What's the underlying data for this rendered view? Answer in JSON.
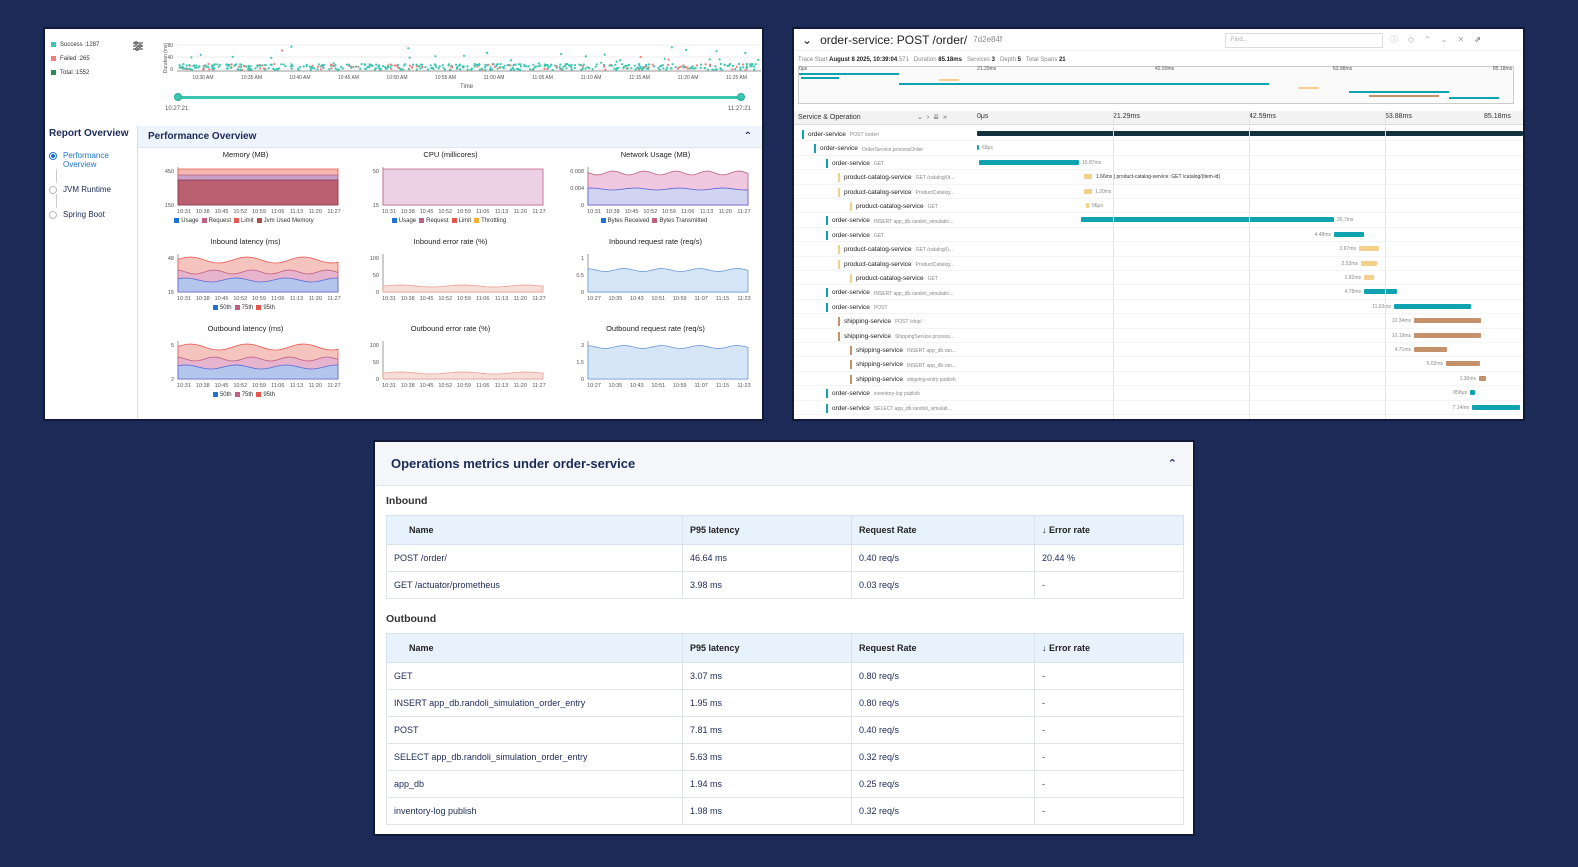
{
  "dashboard": {
    "legend": [
      {
        "label": "Success :1287",
        "color": "#3cc7b1"
      },
      {
        "label": "Failed :265",
        "color": "#f47c7c"
      },
      {
        "label": "Total :1552",
        "color": "#2e8b57"
      }
    ],
    "y_axis_label": "Duration (ms)",
    "y_ticks": [
      "80",
      "40",
      "0"
    ],
    "x_ticks": [
      "10:30 AM",
      "10:35 AM",
      "10:40 AM",
      "10:45 AM",
      "10:50 AM",
      "10:55 AM",
      "11:00 AM",
      "11:05 AM",
      "11:10 AM",
      "11:15 AM",
      "11:20 AM",
      "11:25 AM"
    ],
    "x_axis_label": "Time",
    "range_start": "10:27:21",
    "range_end": "11:27:21",
    "report_overview": {
      "title": "Report Overview",
      "items": [
        "Performance Overview",
        "JVM Runtime",
        "Spring Boot"
      ]
    },
    "perf_title": "Performance Overview",
    "charts": [
      {
        "title": "Memory (MB)",
        "y_ticks": [
          "450",
          "150"
        ],
        "x_ticks": [
          "10:31",
          "10:38",
          "10:45",
          "10:52",
          "10:59",
          "11:06",
          "11:13",
          "11:20",
          "11:27"
        ],
        "legend": [
          {
            "label": "Usage",
            "color": "#1f73d1"
          },
          {
            "label": "Request",
            "color": "#c06080"
          },
          {
            "label": "Limit",
            "color": "#e8574f"
          },
          {
            "label": "Jvm Used Memory",
            "color": "#b05050"
          }
        ],
        "kind": "memory"
      },
      {
        "title": "CPU (millicores)",
        "y_ticks": [
          "50",
          "15"
        ],
        "x_ticks": [
          "10:31",
          "10:38",
          "10:45",
          "10:52",
          "10:59",
          "11:06",
          "11:13",
          "11:20",
          "11:27"
        ],
        "legend": [
          {
            "label": "Usage",
            "color": "#1f73d1"
          },
          {
            "label": "Request",
            "color": "#c06080"
          },
          {
            "label": "Limit",
            "color": "#e8574f"
          },
          {
            "label": "Throttling",
            "color": "#f0b030"
          }
        ],
        "kind": "cpu"
      },
      {
        "title": "Network Usage (MB)",
        "y_ticks": [
          "0.008",
          "0.004",
          "0"
        ],
        "x_ticks": [
          "10:31",
          "10:38",
          "10:45",
          "10:52",
          "10:59",
          "11:06",
          "11:13",
          "11:20",
          "11:27"
        ],
        "legend": [
          {
            "label": "Bytes Received",
            "color": "#1f73d1"
          },
          {
            "label": "Bytes Transmitted",
            "color": "#c06080"
          }
        ],
        "kind": "network"
      },
      {
        "title": "Inbound latency (ms)",
        "y_ticks": [
          "48",
          "15"
        ],
        "x_ticks": [
          "10:31",
          "10:38",
          "10:45",
          "10:52",
          "10:59",
          "11:06",
          "11:13",
          "11:20",
          "11:27"
        ],
        "legend": [
          {
            "label": "50th",
            "color": "#1f73d1"
          },
          {
            "label": "75th",
            "color": "#c06080"
          },
          {
            "label": "95th",
            "color": "#e8574f"
          }
        ],
        "kind": "latency"
      },
      {
        "title": "Inbound error rate (%)",
        "y_ticks": [
          "100",
          "50",
          "0"
        ],
        "x_ticks": [
          "10:31",
          "10:38",
          "10:45",
          "10:52",
          "10:59",
          "11:06",
          "11:13",
          "11:20",
          "11:27"
        ],
        "legend": [],
        "kind": "error"
      },
      {
        "title": "Inbound request rate (req/s)",
        "y_ticks": [
          "1",
          "0.5",
          "0"
        ],
        "x_ticks": [
          "10:27",
          "10:35",
          "10:43",
          "10:51",
          "10:59",
          "11:07",
          "11:15",
          "11:23"
        ],
        "legend": [],
        "kind": "rate"
      },
      {
        "title": "Outbound latency (ms)",
        "y_ticks": [
          "5",
          "2"
        ],
        "x_ticks": [
          "10:31",
          "10:38",
          "10:45",
          "10:52",
          "10:59",
          "11:06",
          "11:13",
          "11:20",
          "11:27"
        ],
        "legend": [
          {
            "label": "50th",
            "color": "#1f73d1"
          },
          {
            "label": "75th",
            "color": "#c06080"
          },
          {
            "label": "95th",
            "color": "#e8574f"
          }
        ],
        "kind": "latency2"
      },
      {
        "title": "Outbound error rate (%)",
        "y_ticks": [
          "100",
          "50",
          "0"
        ],
        "x_ticks": [
          "10:31",
          "10:38",
          "10:45",
          "10:52",
          "10:59",
          "11:06",
          "11:13",
          "11:20",
          "11:27"
        ],
        "legend": [],
        "kind": "error"
      },
      {
        "title": "Outbound request rate (req/s)",
        "y_ticks": [
          "3",
          "1.5",
          "0"
        ],
        "x_ticks": [
          "10:27",
          "10:35",
          "10:43",
          "10:51",
          "10:59",
          "11:07",
          "11:15",
          "11:23"
        ],
        "legend": [],
        "kind": "rate2"
      }
    ]
  },
  "trace": {
    "title": "order-service: POST /order/",
    "trace_id": "7d2e84f",
    "find_placeholder": "Find...",
    "meta": {
      "start_label": "Trace Start",
      "start": "August 8 2025, 10:39:04",
      "start_ms": ".571",
      "duration_label": "Duration",
      "duration": "85.18ms",
      "services_label": "Services",
      "services": "3",
      "depth_label": "Depth",
      "depth": "5",
      "spans_label": "Total Spans",
      "spans": "21"
    },
    "ticks": [
      "0μs",
      "21.29ms",
      "42.59ms",
      "63.88ms",
      "85.18ms"
    ],
    "column_header": "Service & Operation",
    "inline_label": "1.66ms | product-catalog-service: GET /catalog/{item-id}",
    "spans": [
      {
        "service": "order-service",
        "op": "POST /order/",
        "depth": 0,
        "color": "#0fa3b1",
        "dur": ""
      },
      {
        "service": "order-service",
        "op": "OrderService.processOrder",
        "depth": 1,
        "color": "#0fa3b1",
        "dur": "69μs"
      },
      {
        "service": "order-service",
        "op": "GET",
        "depth": 2,
        "color": "#0fa3b1",
        "dur": "15.87ms"
      },
      {
        "service": "product-catalog-service",
        "op": "GET /catalog/{it...",
        "depth": 3,
        "color": "#f5d08c",
        "dur": ""
      },
      {
        "service": "product-catalog-service",
        "op": "ProductCatalog...",
        "depth": 3,
        "color": "#f5d08c",
        "dur": "1.20ms"
      },
      {
        "service": "product-catalog-service",
        "op": "GET",
        "depth": 4,
        "color": "#f5d08c",
        "dur": "96μs"
      },
      {
        "service": "order-service",
        "op": "INSERT app_db.randoli_simulatio...",
        "depth": 2,
        "color": "#0fa3b1",
        "dur": "39.7ms"
      },
      {
        "service": "order-service",
        "op": "GET",
        "depth": 2,
        "color": "#0fa3b1",
        "dur": "4.48ms"
      },
      {
        "service": "product-catalog-service",
        "op": "GET /catalog/{i...",
        "depth": 3,
        "color": "#f5d08c",
        "dur": "2.67ms"
      },
      {
        "service": "product-catalog-service",
        "op": "ProductCatalog...",
        "depth": 3,
        "color": "#f5d08c",
        "dur": "2.53ms"
      },
      {
        "service": "product-catalog-service",
        "op": "GET",
        "depth": 4,
        "color": "#f5d08c",
        "dur": "1.82ms"
      },
      {
        "service": "order-service",
        "op": "INSERT app_db.randoli_simulatio...",
        "depth": 2,
        "color": "#0fa3b1",
        "dur": "4.78ms"
      },
      {
        "service": "order-service",
        "op": "POST",
        "depth": 2,
        "color": "#0fa3b1",
        "dur": "11.63ms"
      },
      {
        "service": "shipping-service",
        "op": "POST /ship/",
        "depth": 3,
        "color": "#c4916a",
        "dur": "10.34ms"
      },
      {
        "service": "shipping-service",
        "op": "ShippingService.process...",
        "depth": 3,
        "color": "#c4916a",
        "dur": "10.19ms"
      },
      {
        "service": "shipping-service",
        "op": "INSERT app_db.ran...",
        "depth": 4,
        "color": "#c4916a",
        "dur": "4.71ms"
      },
      {
        "service": "shipping-service",
        "op": "INSERT app_db.ran...",
        "depth": 4,
        "color": "#c4916a",
        "dur": "5.02ms"
      },
      {
        "service": "shipping-service",
        "op": "shipping-entry publish",
        "depth": 4,
        "color": "#c4916a",
        "dur": "1.30ms"
      },
      {
        "service": "order-service",
        "op": "inventory-log publish",
        "depth": 2,
        "color": "#0fa3b1",
        "dur": "858μs"
      },
      {
        "service": "order-service",
        "op": "SELECT app_db.randoli_simulati...",
        "depth": 2,
        "color": "#0fa3b1",
        "dur": "7.14ms"
      }
    ]
  },
  "ops": {
    "title": "Operations metrics under order-service",
    "inbound_label": "Inbound",
    "outbound_label": "Outbound",
    "columns": [
      "Name",
      "P95 latency",
      "Request Rate",
      "Error rate"
    ],
    "inbound": [
      [
        "POST /order/",
        "46.64 ms",
        "0.40 req/s",
        "20.44 %"
      ],
      [
        "GET /actuator/prometheus",
        "3.98 ms",
        "0.03 req/s",
        "-"
      ]
    ],
    "outbound": [
      [
        "GET",
        "3.07 ms",
        "0.80 req/s",
        "-"
      ],
      [
        "INSERT app_db.randoli_simulation_order_entry",
        "1.95 ms",
        "0.80 req/s",
        "-"
      ],
      [
        "POST",
        "7.81 ms",
        "0.40 req/s",
        "-"
      ],
      [
        "SELECT app_db.randoli_simulation_order_entry",
        "5.63 ms",
        "0.32 req/s",
        "-"
      ],
      [
        "app_db",
        "1.94 ms",
        "0.25 req/s",
        "-"
      ],
      [
        "inventory-log publish",
        "1.98 ms",
        "0.32 req/s",
        "-"
      ]
    ]
  }
}
